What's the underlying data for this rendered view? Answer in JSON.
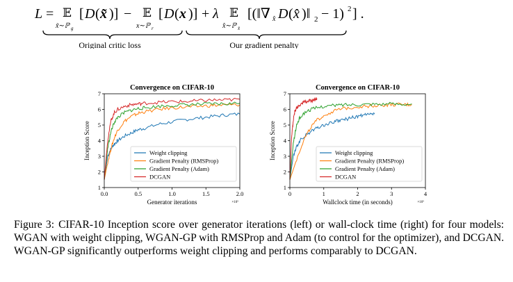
{
  "equation": {
    "brace_left_label": "Original critic loss",
    "brace_right_label": "Our gradient penalty"
  },
  "caption": {
    "label": "Figure 3:",
    "text": "CIFAR-10 Inception score over generator iterations (left) or wall-clock time (right) for four models: WGAN with weight clipping, WGAN-GP with RMSProp and Adam (to control for the optimizer), and DCGAN. WGAN-GP significantly outperforms weight clipping and performs comparably to DCGAN."
  },
  "colors": {
    "weight_clipping": "#1f77b4",
    "gp_rmsprop": "#ff7f0e",
    "gp_adam": "#2ca02c",
    "dcgan": "#d62728"
  },
  "chart_data": [
    {
      "type": "line",
      "title": "Convergence on CIFAR-10",
      "xlabel": "Generator iterations",
      "ylabel": "Inception Score",
      "x_multiplier": "×10⁵",
      "xlim": [
        0,
        2.0
      ],
      "ylim": [
        1,
        7
      ],
      "xticks": [
        0.0,
        0.5,
        1.0,
        1.5,
        2.0
      ],
      "xtick_labels": [
        "0.0",
        "0.5",
        "1.0",
        "1.5",
        "2.0"
      ],
      "yticks": [
        1,
        2,
        3,
        4,
        5,
        6,
        7
      ],
      "legend_position": "lower-right",
      "series": [
        {
          "name": "Weight clipping",
          "x": [
            0,
            0.05,
            0.1,
            0.15,
            0.2,
            0.3,
            0.4,
            0.5,
            0.6,
            0.8,
            1.0,
            1.2,
            1.4,
            1.6,
            1.8,
            2.0
          ],
          "y": [
            1.5,
            3.0,
            3.5,
            3.8,
            4.0,
            4.3,
            4.5,
            4.7,
            4.8,
            5.05,
            5.2,
            5.35,
            5.45,
            5.55,
            5.65,
            5.7
          ]
        },
        {
          "name": "Gradient Penalty (RMSProp)",
          "x": [
            0,
            0.05,
            0.1,
            0.15,
            0.2,
            0.3,
            0.4,
            0.5,
            0.6,
            0.8,
            1.0,
            1.2,
            1.4,
            1.6,
            1.8,
            2.0
          ],
          "y": [
            1.5,
            2.6,
            3.5,
            4.2,
            4.7,
            5.25,
            5.55,
            5.75,
            5.85,
            6.0,
            6.1,
            6.15,
            6.2,
            6.25,
            6.28,
            6.3
          ]
        },
        {
          "name": "Gradient Penalty (Adam)",
          "x": [
            0,
            0.05,
            0.1,
            0.15,
            0.2,
            0.3,
            0.4,
            0.5,
            0.6,
            0.8,
            1.0,
            1.2,
            1.4,
            1.6,
            1.8,
            2.0
          ],
          "y": [
            1.5,
            3.5,
            4.6,
            5.2,
            5.5,
            5.8,
            5.95,
            6.05,
            6.1,
            6.2,
            6.25,
            6.3,
            6.32,
            6.35,
            6.35,
            6.4
          ]
        },
        {
          "name": "DCGAN",
          "x": [
            0,
            0.05,
            0.1,
            0.15,
            0.2,
            0.3,
            0.4,
            0.5,
            0.6,
            0.8,
            1.0,
            1.2,
            1.4,
            1.6,
            1.8,
            2.0
          ],
          "y": [
            1.5,
            4.0,
            5.3,
            5.8,
            6.0,
            6.2,
            6.3,
            6.35,
            6.4,
            6.45,
            6.5,
            6.5,
            6.55,
            6.6,
            6.6,
            6.65
          ]
        }
      ]
    },
    {
      "type": "line",
      "title": "Convergence on CIFAR-10",
      "xlabel": "Wallclock time (in seconds)",
      "ylabel": "Inception Score",
      "x_multiplier": "×10⁵",
      "xlim": [
        0,
        4
      ],
      "ylim": [
        1,
        7
      ],
      "xticks": [
        0,
        1,
        2,
        3,
        4
      ],
      "xtick_labels": [
        "0",
        "1",
        "2",
        "3",
        "4"
      ],
      "yticks": [
        1,
        2,
        3,
        4,
        5,
        6,
        7
      ],
      "legend_position": "lower-right",
      "series": [
        {
          "name": "Weight clipping",
          "x": [
            0,
            0.1,
            0.2,
            0.3,
            0.5,
            0.7,
            0.9,
            1.1,
            1.3,
            1.5,
            1.7,
            1.9,
            2.1,
            2.3,
            2.5
          ],
          "y": [
            1.5,
            3.0,
            3.6,
            4.0,
            4.4,
            4.7,
            4.9,
            5.05,
            5.2,
            5.3,
            5.4,
            5.5,
            5.6,
            5.65,
            5.7
          ]
        },
        {
          "name": "Gradient Penalty (RMSProp)",
          "x": [
            0,
            0.2,
            0.4,
            0.6,
            0.8,
            1.0,
            1.3,
            1.6,
            1.9,
            2.2,
            2.5,
            2.8,
            3.1,
            3.4,
            3.6
          ],
          "y": [
            1.5,
            2.8,
            4.0,
            4.8,
            5.3,
            5.6,
            5.9,
            6.05,
            6.15,
            6.2,
            6.25,
            6.28,
            6.3,
            6.3,
            6.3
          ]
        },
        {
          "name": "Gradient Penalty (Adam)",
          "x": [
            0,
            0.1,
            0.2,
            0.3,
            0.5,
            0.7,
            1.0,
            1.3,
            1.6,
            2.0,
            2.4,
            2.8,
            3.2,
            3.6
          ],
          "y": [
            1.5,
            3.8,
            5.0,
            5.5,
            5.9,
            6.05,
            6.2,
            6.25,
            6.3,
            6.32,
            6.35,
            6.35,
            6.35,
            6.35
          ]
        },
        {
          "name": "DCGAN",
          "x": [
            0,
            0.05,
            0.1,
            0.15,
            0.2,
            0.3,
            0.4,
            0.5,
            0.6,
            0.7,
            0.8
          ],
          "y": [
            1.5,
            4.2,
            5.3,
            5.9,
            6.1,
            6.3,
            6.45,
            6.5,
            6.55,
            6.6,
            6.7
          ]
        }
      ]
    }
  ]
}
